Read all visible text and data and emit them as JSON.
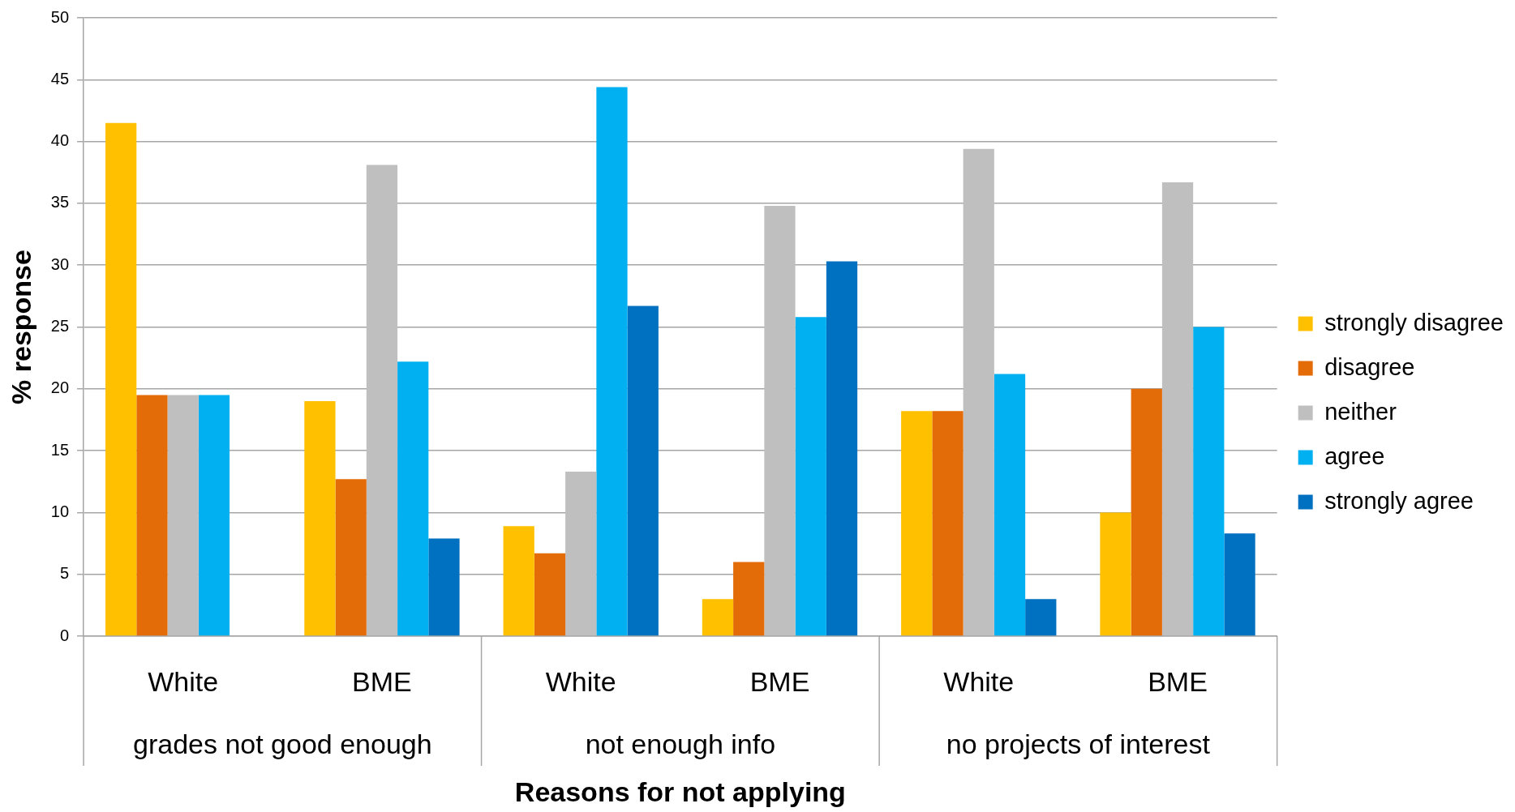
{
  "chart_data": {
    "type": "bar",
    "xlabel": "Reasons for not applying",
    "ylabel": "% response",
    "categories": [
      "White",
      "BME",
      "White",
      "BME",
      "White",
      "BME"
    ],
    "annotations": [
      "grades not good enough",
      "not enough info",
      "no projects of interest"
    ],
    "series": [
      {
        "name": "strongly disagree",
        "color": "#ffc000",
        "values": [
          41.5,
          19,
          8.9,
          3,
          18.2,
          10
        ]
      },
      {
        "name": "disagree",
        "color": "#e36c09",
        "values": [
          19.5,
          12.7,
          6.7,
          6,
          18.2,
          20
        ]
      },
      {
        "name": "neither",
        "color": "#bfbfbf",
        "values": [
          19.5,
          38.1,
          13.3,
          34.8,
          39.4,
          36.7
        ]
      },
      {
        "name": "agree",
        "color": "#00b0f0",
        "values": [
          19.5,
          22.2,
          44.4,
          25.8,
          21.2,
          25
        ]
      },
      {
        "name": "strongly agree",
        "color": "#0070c0",
        "values": [
          0,
          7.9,
          26.7,
          30.3,
          3,
          8.3
        ]
      }
    ],
    "ylim": [
      0,
      50
    ],
    "yticks": [
      0,
      5,
      10,
      15,
      20,
      25,
      30,
      35,
      40,
      45,
      50
    ],
    "grid": "y",
    "legend": "right"
  }
}
